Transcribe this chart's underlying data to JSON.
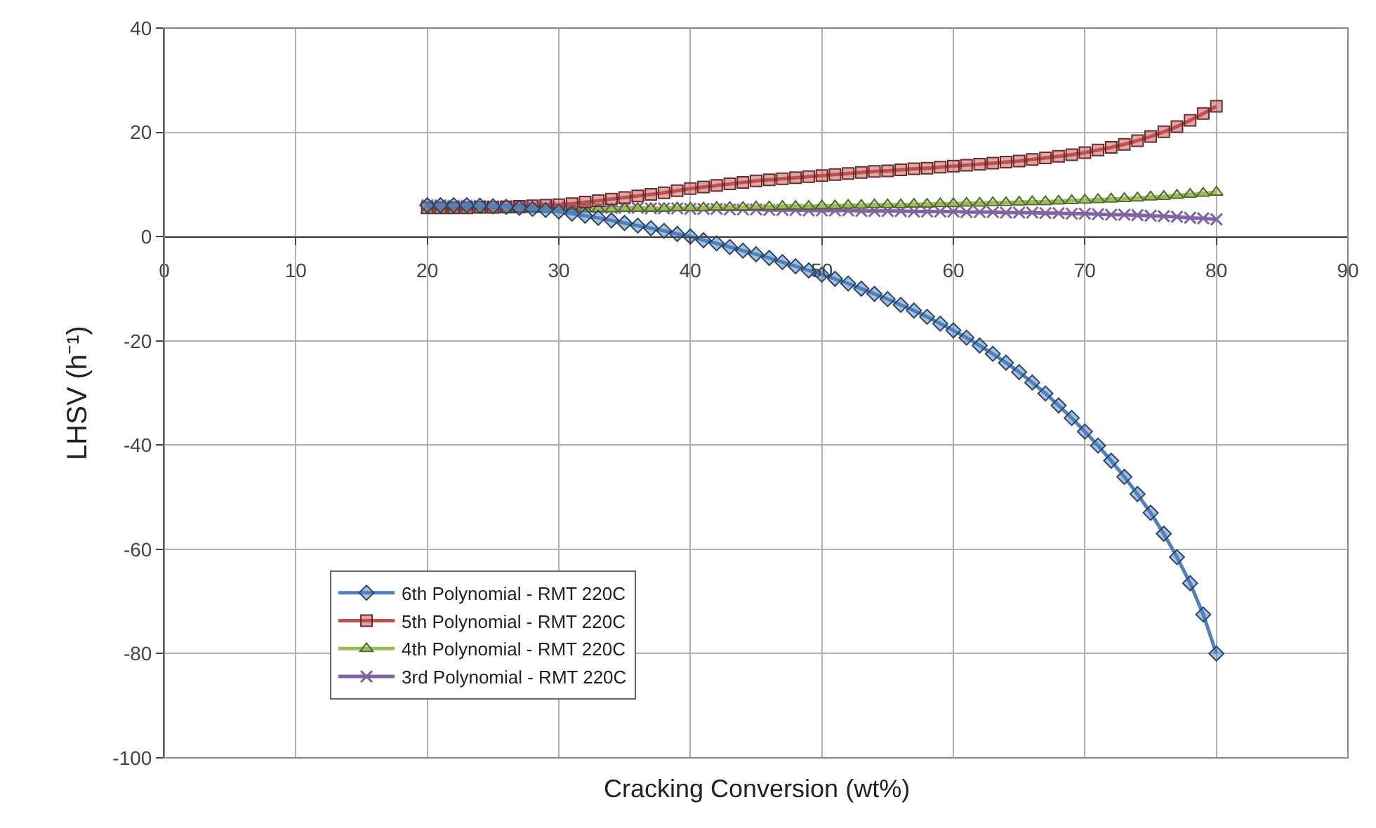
{
  "chart_data": {
    "type": "line",
    "xlabel": "Cracking Conversion (wt%)",
    "ylabel": "LHSV (h⁻¹)",
    "x": [
      20,
      21,
      22,
      23,
      24,
      25,
      26,
      27,
      28,
      29,
      30,
      31,
      32,
      33,
      34,
      35,
      36,
      37,
      38,
      39,
      40,
      41,
      42,
      43,
      44,
      45,
      46,
      47,
      48,
      49,
      50,
      51,
      52,
      53,
      54,
      55,
      56,
      57,
      58,
      59,
      60,
      61,
      62,
      63,
      64,
      65,
      66,
      67,
      68,
      69,
      70,
      71,
      72,
      73,
      74,
      75,
      76,
      77,
      78,
      79,
      80
    ],
    "series": [
      {
        "name": "6th Polynomial - RMT 220C",
        "color": "#4f81bd",
        "marker": "diamond",
        "values": [
          6,
          6,
          6,
          6,
          5.9,
          5.8,
          5.7,
          5.5,
          5.3,
          5.1,
          4.8,
          4.4,
          4,
          3.6,
          3.1,
          2.6,
          2.1,
          1.6,
          1.1,
          0.5,
          0,
          -0.7,
          -1.3,
          -2,
          -2.7,
          -3.4,
          -4.1,
          -4.9,
          -5.7,
          -6.5,
          -7.3,
          -8.1,
          -9,
          -10,
          -11,
          -12,
          -13.1,
          -14.2,
          -15.4,
          -16.7,
          -18,
          -19.4,
          -20.9,
          -22.5,
          -24.2,
          -26,
          -28,
          -30.1,
          -32.4,
          -34.8,
          -37.4,
          -40.1,
          -43,
          -46.1,
          -49.4,
          -53,
          -57,
          -61.5,
          -66.5,
          -72.5,
          -80
        ]
      },
      {
        "name": "5th Polynomial - RMT 220C",
        "color": "#c0504d",
        "marker": "square",
        "values": [
          5.5,
          5.5,
          5.5,
          5.5,
          5.6,
          5.6,
          5.7,
          5.8,
          5.9,
          6,
          6.1,
          6.3,
          6.6,
          6.9,
          7.2,
          7.5,
          7.8,
          8.1,
          8.4,
          8.8,
          9.2,
          9.5,
          9.8,
          10.1,
          10.4,
          10.7,
          10.9,
          11.1,
          11.3,
          11.5,
          11.7,
          11.9,
          12.1,
          12.3,
          12.5,
          12.6,
          12.8,
          13,
          13.1,
          13.3,
          13.5,
          13.7,
          13.9,
          14.1,
          14.3,
          14.5,
          14.8,
          15.1,
          15.4,
          15.7,
          16.1,
          16.6,
          17.1,
          17.7,
          18.4,
          19.2,
          20.1,
          21.1,
          22.3,
          23.6,
          25
        ]
      },
      {
        "name": "4th Polynomial - RMT 220C",
        "color": "#9bbb59",
        "marker": "triangle",
        "values": [
          5,
          5,
          5,
          5,
          5.1,
          5.1,
          5.1,
          5.1,
          5.2,
          5.2,
          5.2,
          5.3,
          5.3,
          5.3,
          5.3,
          5.4,
          5.4,
          5.4,
          5.4,
          5.5,
          5.5,
          5.5,
          5.6,
          5.6,
          5.6,
          5.7,
          5.7,
          5.8,
          5.8,
          5.8,
          5.9,
          5.9,
          6,
          6,
          6.1,
          6.1,
          6.1,
          6.2,
          6.2,
          6.3,
          6.3,
          6.4,
          6.4,
          6.5,
          6.5,
          6.6,
          6.7,
          6.7,
          6.8,
          6.9,
          7,
          7.1,
          7.2,
          7.3,
          7.4,
          7.6,
          7.7,
          7.9,
          8.1,
          8.3,
          8.5
        ]
      },
      {
        "name": "3rd Polynomial - RMT 220C",
        "color": "#8064a2",
        "marker": "cross",
        "values": [
          6,
          6,
          5.9,
          5.9,
          5.9,
          5.8,
          5.8,
          5.8,
          5.7,
          5.7,
          5.7,
          5.6,
          5.6,
          5.6,
          5.5,
          5.5,
          5.5,
          5.4,
          5.4,
          5.4,
          5.3,
          5.3,
          5.3,
          5.2,
          5.2,
          5.2,
          5.1,
          5.1,
          5.1,
          5,
          5,
          5,
          5,
          4.9,
          4.9,
          4.9,
          4.9,
          4.8,
          4.8,
          4.8,
          4.8,
          4.7,
          4.7,
          4.7,
          4.6,
          4.6,
          4.6,
          4.5,
          4.5,
          4.4,
          4.4,
          4.3,
          4.2,
          4.2,
          4.1,
          4,
          3.9,
          3.8,
          3.6,
          3.5,
          3.3
        ]
      }
    ],
    "xlim": [
      0,
      90
    ],
    "xticks": [
      0,
      10,
      20,
      30,
      40,
      50,
      60,
      70,
      80,
      90
    ],
    "ylim": [
      -100,
      40
    ],
    "yticks": [
      -100,
      -80,
      -60,
      -40,
      -20,
      0,
      20,
      40
    ],
    "grid": true,
    "legend": "bottom left"
  }
}
